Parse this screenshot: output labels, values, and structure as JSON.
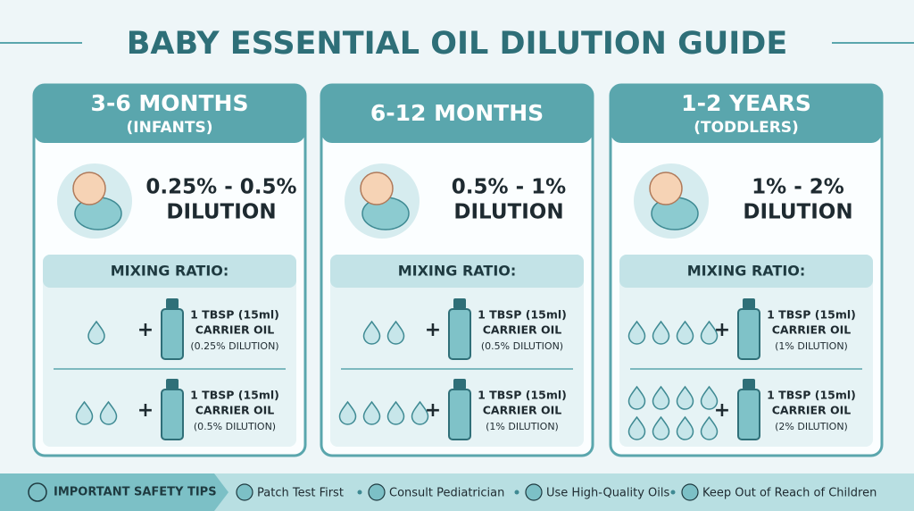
{
  "title": "BABY ESSENTIAL OIL DILUTION GUIDE",
  "cards": [
    {
      "heading": [
        "3-6 MONTHS",
        "(INFANTS)"
      ],
      "dilution": [
        "0.25% - 0.5%",
        "DILUTION"
      ],
      "mixing_label": "MIXING RATIO:",
      "rows": [
        {
          "drops": 1,
          "amount": "1 TBSP (15ml)",
          "carrier": "CARRIER OIL",
          "note": "(0.25% DILUTION)"
        },
        {
          "drops": 2,
          "amount": "1 TBSP (15ml)",
          "carrier": "CARRIER OIL",
          "note": "(0.5% DILUTION)"
        }
      ]
    },
    {
      "heading": [
        "6-12 MONTHS"
      ],
      "dilution": [
        "0.5% - 1%",
        "DILUTION"
      ],
      "mixing_label": "MIXING RATIO:",
      "rows": [
        {
          "drops": 2,
          "amount": "1 TBSP (15ml)",
          "carrier": "CARRIER OIL",
          "note": "(0.5% DILUTION)"
        },
        {
          "drops": 4,
          "amount": "1 TBSP (15ml)",
          "carrier": "CARRIER OIL",
          "note": "(1% DILUTION)"
        }
      ]
    },
    {
      "heading": [
        "1-2 YEARS",
        "(TODDLERS)"
      ],
      "dilution": [
        "1% - 2%",
        "DILUTION"
      ],
      "mixing_label": "MIXING RATIO:",
      "rows": [
        {
          "drops": 4,
          "amount": "1 TBSP (15ml)",
          "carrier": "CARRIER OIL",
          "note": "(1% DILUTION)"
        },
        {
          "drops": 8,
          "amount": "1 TBSP (15ml)",
          "carrier": "CARRIER OIL",
          "note": "(2% DILUTION)"
        }
      ]
    }
  ],
  "safety": {
    "label": "IMPORTANT SAFETY TIPS",
    "tips": [
      "Patch Test First",
      "Consult Pediatrician",
      "Use High-Quality Oils",
      "Keep Out of Reach of Children"
    ]
  }
}
